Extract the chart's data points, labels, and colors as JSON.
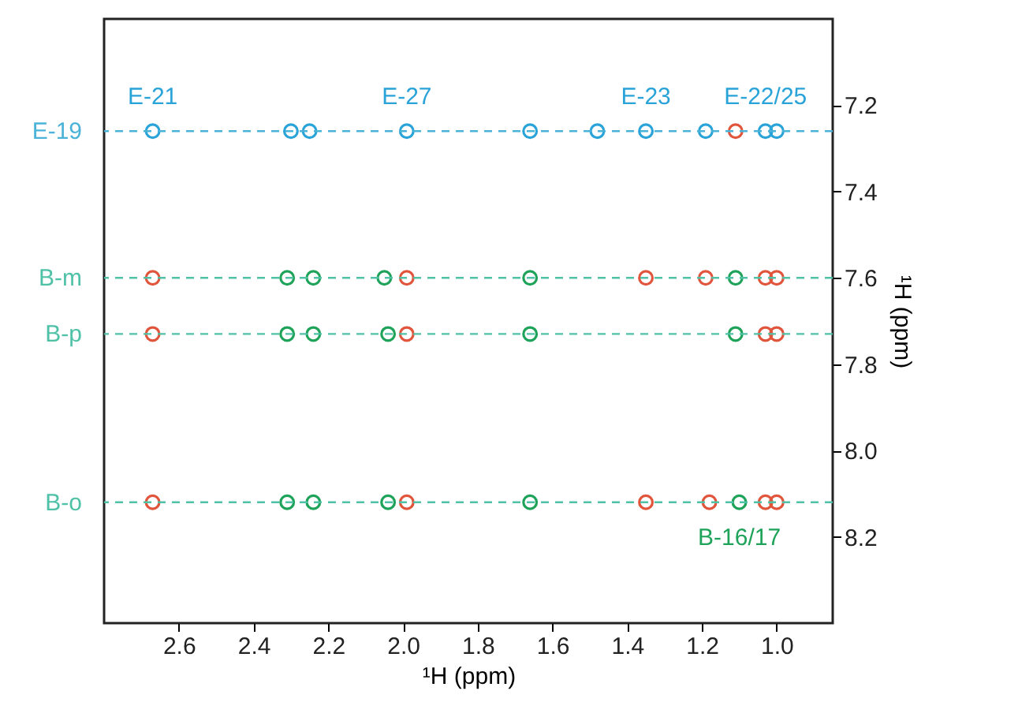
{
  "chart_data": {
    "type": "scatter",
    "xlabel": "¹H (ppm)",
    "ylabel": "¹H (ppm)",
    "xlim": [
      2.8,
      0.85
    ],
    "ylim": [
      8.4,
      7.0
    ],
    "xticks": [
      2.6,
      2.4,
      2.2,
      {
        "value": 2,
        "label": "2.0"
      },
      1.8,
      1.6,
      1.4,
      1.2,
      {
        "value": 1,
        "label": "1.0"
      }
    ],
    "yticks": [
      7.2,
      7.4,
      7.6,
      7.8,
      {
        "value": 8,
        "label": "8.0"
      },
      8.2
    ],
    "grid": false,
    "marker": "circle",
    "series": [
      {
        "color": "#2aa3d8",
        "x": [
          2.67,
          2.3,
          2.25,
          1.99,
          1.66,
          1.48,
          1.35,
          1.19,
          1.03,
          1.0
        ],
        "values": [
          7.26,
          7.26,
          7.26,
          7.26,
          7.26,
          7.26,
          7.26,
          7.26,
          7.26,
          7.26
        ]
      },
      {
        "color": "#1fa35a",
        "x": [
          2.31,
          2.24,
          2.05,
          1.66,
          1.11,
          2.31,
          2.24,
          2.04,
          1.66,
          1.11,
          2.31,
          2.24,
          2.04,
          1.66,
          1.1
        ],
        "values": [
          7.6,
          7.6,
          7.6,
          7.6,
          7.6,
          7.73,
          7.73,
          7.73,
          7.73,
          7.73,
          8.12,
          8.12,
          8.12,
          8.12,
          8.12
        ]
      },
      {
        "color": "#e0553b",
        "x": [
          1.11,
          2.67,
          1.99,
          1.35,
          1.19,
          1.03,
          1.0,
          2.67,
          1.99,
          1.03,
          1.0,
          2.67,
          1.99,
          1.35,
          1.18,
          1.03,
          1.0
        ],
        "values": [
          7.26,
          7.6,
          7.6,
          7.6,
          7.6,
          7.6,
          7.6,
          7.73,
          7.73,
          7.73,
          7.73,
          8.12,
          8.12,
          8.12,
          8.12,
          8.12,
          8.12
        ]
      }
    ],
    "ref_lines": [
      {
        "axis": "y",
        "value": 7.26,
        "label": "E-19",
        "color": "#4bb3d8",
        "line_style": "dashed"
      },
      {
        "axis": "y",
        "value": 7.6,
        "label": "B-m",
        "color": "#4fc1a6",
        "line_style": "dashed"
      },
      {
        "axis": "y",
        "value": 7.73,
        "label": "B-p",
        "color": "#4fc1a6",
        "line_style": "dashed"
      },
      {
        "axis": "y",
        "value": 8.12,
        "label": "B-o",
        "color": "#4fc1a6",
        "line_style": "dashed"
      }
    ],
    "annotations": [
      {
        "text": "E-21",
        "x": 2.67,
        "y": 7.26
      },
      {
        "text": "E-27",
        "x": 1.99,
        "y": 7.26
      },
      {
        "text": "E-23",
        "x": 1.35,
        "y": 7.26
      },
      {
        "text": "E-22/25",
        "x": 1.03,
        "y": 7.26
      },
      {
        "text": "B-16/17",
        "x": 1.1,
        "y": 8.12
      }
    ]
  }
}
